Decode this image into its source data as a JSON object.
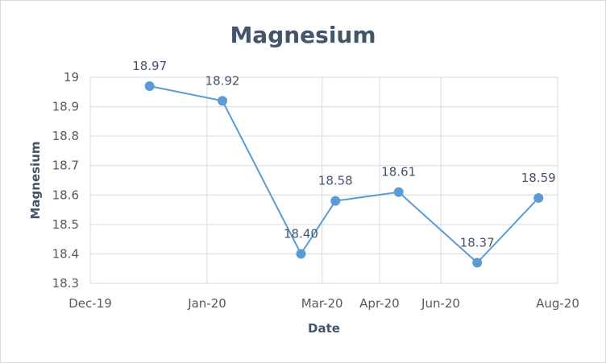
{
  "chart_data": {
    "type": "line",
    "title": "Magnesium",
    "xlabel": "Date",
    "ylabel": "Magnesium",
    "ylim": [
      18.3,
      19
    ],
    "yticks": [
      18.3,
      18.4,
      18.5,
      18.6,
      18.7,
      18.8,
      18.9,
      19
    ],
    "xlim": [
      "2019-12-01",
      "2020-08-01"
    ],
    "xticks": [
      {
        "date": "2019-12-01",
        "label": "Dec-19"
      },
      {
        "date": "2020-01-31",
        "label": "Jan-20"
      },
      {
        "date": "2020-03-31",
        "label": "Mar-20"
      },
      {
        "date": "2020-04-30",
        "label": "Apr-20"
      },
      {
        "date": "2020-06-01",
        "label": "Jun-20"
      },
      {
        "date": "2020-08-01",
        "label": "Aug-20"
      }
    ],
    "grid": true,
    "series": [
      {
        "color": "#5b9bd5",
        "points": [
          {
            "x": "2020-01-01",
            "y": 18.97,
            "label": "18.97"
          },
          {
            "x": "2020-02-08",
            "y": 18.92,
            "label": "18.92"
          },
          {
            "x": "2020-03-20",
            "y": 18.4,
            "label": "18.40"
          },
          {
            "x": "2020-04-07",
            "y": 18.58,
            "label": "18.58"
          },
          {
            "x": "2020-05-10",
            "y": 18.61,
            "label": "18.61"
          },
          {
            "x": "2020-06-20",
            "y": 18.37,
            "label": "18.37"
          },
          {
            "x": "2020-07-22",
            "y": 18.59,
            "label": "18.59"
          }
        ]
      }
    ]
  }
}
